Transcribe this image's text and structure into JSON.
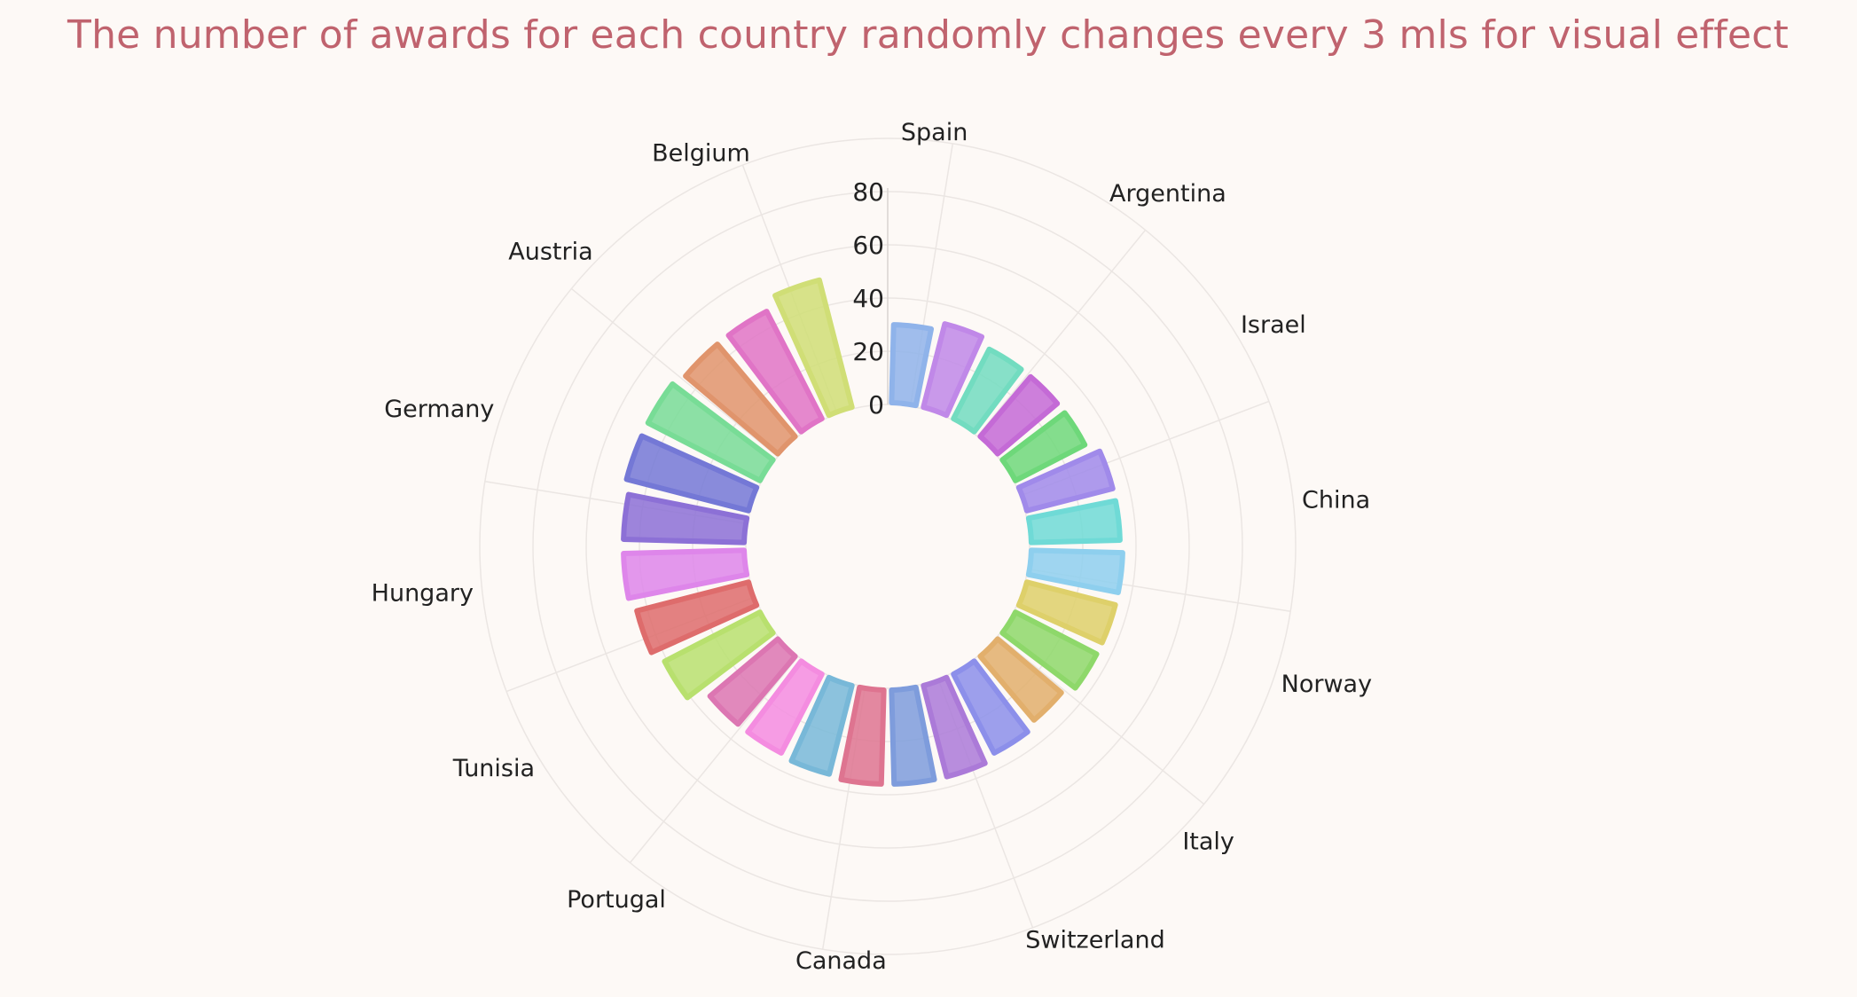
{
  "title": "The number of awards for each country randomly changes every 3 mls for visual effect",
  "chart_data": {
    "type": "bar",
    "polar": true,
    "title": "The number of awards for each country randomly changes every 3 mls for visual effect",
    "radial_ticks": [
      "0",
      "20",
      "40",
      "60",
      "80"
    ],
    "ylim": [
      0,
      80
    ],
    "grid": true,
    "categories": [
      "Spain",
      "",
      "Argentina",
      "",
      "Israel",
      "",
      "China",
      "",
      "Norway",
      "",
      "Italy",
      "",
      "Switzerland",
      "",
      "Canada",
      "",
      "Portugal",
      "",
      "Tunisia",
      "",
      "Hungary",
      "",
      "Germany",
      "",
      "Austria",
      "",
      "Belgium"
    ],
    "values": [
      30,
      33,
      30,
      30,
      30,
      34,
      34,
      35,
      35,
      35,
      32,
      34,
      36,
      36,
      36,
      35,
      34,
      34,
      41,
      44,
      46,
      46,
      48,
      48,
      46,
      46,
      50
    ],
    "colors": [
      "#8fb3ea",
      "#c088e8",
      "#72dcc0",
      "#c46ad6",
      "#6ed87a",
      "#a08aea",
      "#6fdad6",
      "#8ecfee",
      "#ded06a",
      "#8ed86a",
      "#e2af6c",
      "#8c8fea",
      "#ab7ad8",
      "#7e9cdc",
      "#de7490",
      "#78b8d8",
      "#f48ce0",
      "#dc76b2",
      "#b8e06e",
      "#de6c6c",
      "#de86ea",
      "#8c70d6",
      "#7478d6",
      "#78dc96",
      "#e0946c",
      "#e074c6",
      "#d0de76"
    ]
  }
}
